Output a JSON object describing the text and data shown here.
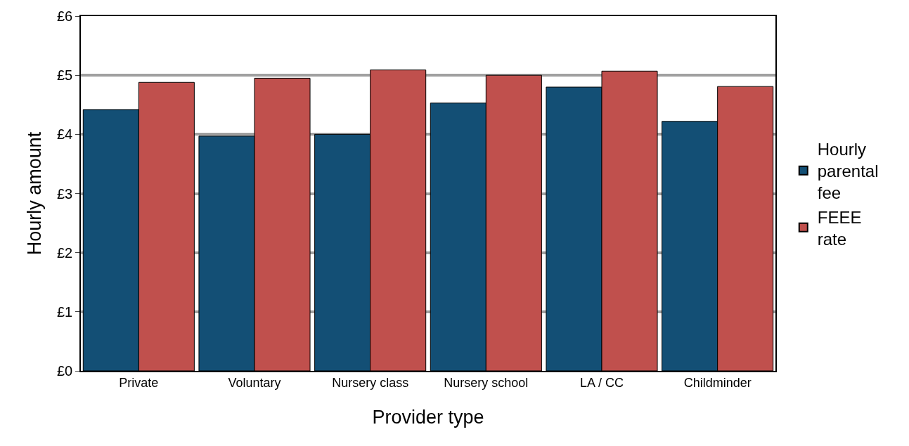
{
  "chart_data": {
    "type": "bar",
    "xlabel": "Provider type",
    "ylabel": "Hourly amount",
    "categories": [
      "Private",
      "Voluntary",
      "Nursery class",
      "Nursery school",
      "LA / CC",
      "Childminder"
    ],
    "series": [
      {
        "name": "Hourly parental fee",
        "color": "#134f75",
        "values": [
          4.42,
          3.97,
          4.0,
          4.53,
          4.8,
          4.22
        ]
      },
      {
        "name": "FEEE rate",
        "color": "#c0504d",
        "values": [
          4.88,
          4.95,
          5.09,
          5.0,
          5.07,
          4.81
        ]
      }
    ],
    "ylim": [
      0,
      6
    ],
    "yticks": [
      {
        "value": 0,
        "label": "£0"
      },
      {
        "value": 1,
        "label": "£1"
      },
      {
        "value": 2,
        "label": "£2"
      },
      {
        "value": 3,
        "label": "£3"
      },
      {
        "value": 4,
        "label": "£4"
      },
      {
        "value": 5,
        "label": "£5"
      },
      {
        "value": 6,
        "label": "£6"
      }
    ],
    "grid": "y",
    "legend": "right"
  }
}
